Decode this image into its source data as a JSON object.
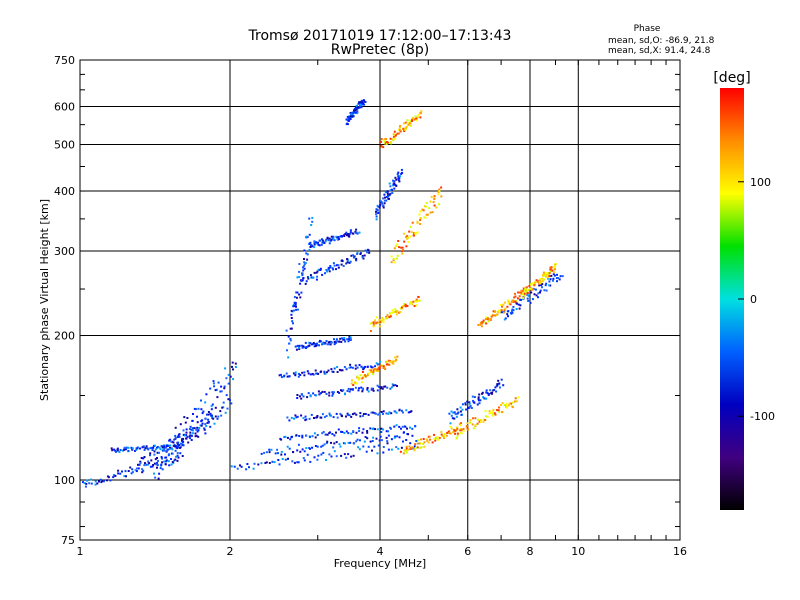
{
  "chart_data": {
    "type": "scatter",
    "title": "Tromsø 20171019 17:12:00–17:13:43",
    "subtitle": "RwPretec (8p)",
    "xlabel": "Frequency [MHz]",
    "ylabel": "Stationary phase Virtual Height [km]",
    "x_scale": "log",
    "y_scale": "log",
    "xlim": [
      1,
      16
    ],
    "ylim": [
      75,
      750
    ],
    "x_ticks": [
      1,
      2,
      4,
      6,
      8,
      10,
      16
    ],
    "y_ticks": [
      75,
      100,
      200,
      300,
      400,
      500,
      600,
      750
    ],
    "grid": true,
    "phase_box": {
      "title": "Phase",
      "line_o": "mean, sd,O: -86.9, 21.8",
      "line_x": "mean, sd,X:  91.4, 24.8"
    },
    "colorbar": {
      "label": "[deg]",
      "range": [
        -180,
        180
      ],
      "ticks": [
        100,
        0,
        -100
      ],
      "colors": [
        "#ff0000",
        "#ff8c00",
        "#ffff00",
        "#00e000",
        "#00e0e0",
        "#0060ff",
        "#0000c0",
        "#400080",
        "#000000"
      ]
    },
    "point_colors": {
      "o_mode": [
        "#0018ff",
        "#0033ff",
        "#0050ff",
        "#0a0aa0",
        "#1a00a8",
        "#00a0ff",
        "#1e64ff"
      ],
      "x_mode": [
        "#ff9900",
        "#ffcc00",
        "#ffff00",
        "#ff6600",
        "#d0ff00",
        "#ff3300"
      ]
    },
    "series": [
      {
        "mode": "O",
        "segments": [
          {
            "f": [
              1.0,
              1.6
            ],
            "h": [
              98,
              112
            ]
          },
          {
            "f": [
              1.15,
              1.6
            ],
            "h": [
              116,
              118
            ]
          },
          {
            "f": [
              1.3,
              1.85
            ],
            "h": [
              108,
              136
            ]
          },
          {
            "f": [
              1.4,
              2.0
            ],
            "h": [
              104,
              148
            ]
          },
          {
            "f": [
              1.45,
              2.05
            ],
            "h": [
              112,
              175
            ]
          },
          {
            "f": [
              2.0,
              4.8
            ],
            "h": [
              106,
              120
            ]
          },
          {
            "f": [
              2.3,
              4.6
            ],
            "h": [
              114,
              125
            ]
          },
          {
            "f": [
              2.5,
              4.7
            ],
            "h": [
              123,
              130
            ]
          },
          {
            "f": [
              2.6,
              4.6
            ],
            "h": [
              135,
              140
            ]
          },
          {
            "f": [
              2.7,
              4.3
            ],
            "h": [
              150,
              158
            ]
          },
          {
            "f": [
              2.5,
              4.0
            ],
            "h": [
              165,
              175
            ]
          },
          {
            "f": [
              2.7,
              3.5
            ],
            "h": [
              190,
              198
            ]
          },
          {
            "f": [
              2.8,
              3.8
            ],
            "h": [
              262,
              300
            ]
          },
          {
            "f": [
              2.9,
              3.6
            ],
            "h": [
              310,
              330
            ]
          },
          {
            "f": [
              2.6,
              2.9
            ],
            "h": [
              195,
              340
            ]
          },
          {
            "f": [
              3.4,
              3.7
            ],
            "h": [
              560,
              620
            ]
          },
          {
            "f": [
              3.9,
              4.4
            ],
            "h": [
              360,
              440
            ]
          },
          {
            "f": [
              5.5,
              7.0
            ],
            "h": [
              135,
              160
            ]
          },
          {
            "f": [
              7.0,
              9.2
            ],
            "h": [
              220,
              270
            ]
          }
        ]
      },
      {
        "mode": "X",
        "segments": [
          {
            "f": [
              4.2,
              5.3
            ],
            "h": [
              290,
              400
            ]
          },
          {
            "f": [
              3.8,
              4.8
            ],
            "h": [
              210,
              240
            ]
          },
          {
            "f": [
              4.4,
              5.8
            ],
            "h": [
              115,
              130
            ]
          },
          {
            "f": [
              5.6,
              7.5
            ],
            "h": [
              125,
              148
            ]
          },
          {
            "f": [
              6.3,
              7.8
            ],
            "h": [
              210,
              250
            ]
          },
          {
            "f": [
              7.7,
              9.0
            ],
            "h": [
              245,
              280
            ]
          },
          {
            "f": [
              4.0,
              4.8
            ],
            "h": [
              500,
              580
            ]
          },
          {
            "f": [
              3.5,
              4.3
            ],
            "h": [
              160,
              180
            ]
          }
        ]
      }
    ]
  }
}
